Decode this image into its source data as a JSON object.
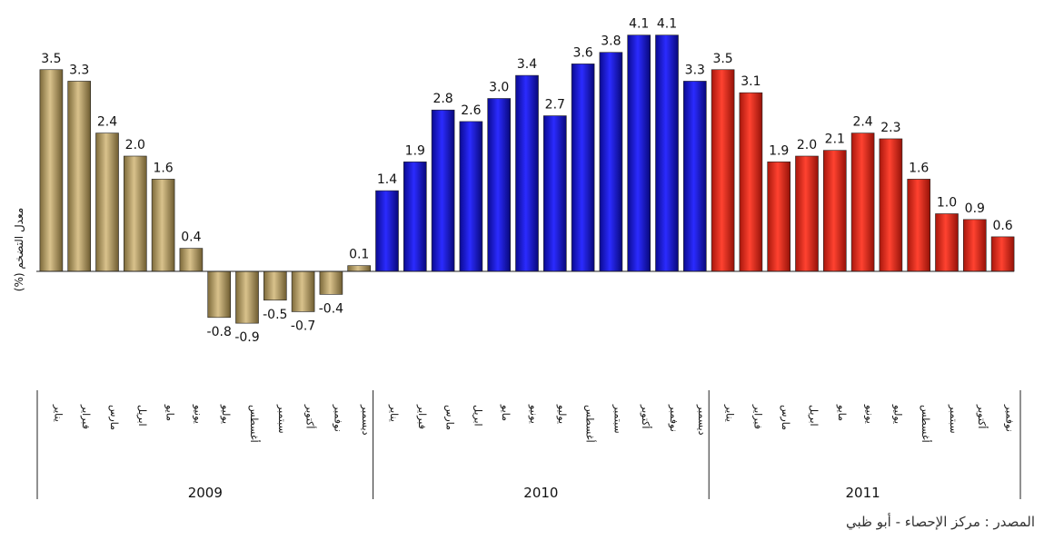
{
  "chart_data": {
    "type": "bar",
    "ylabel": "معدل التضخم (%)",
    "groups": [
      {
        "year": "2009",
        "color": "#b8a06a",
        "months": [
          "يناير",
          "فبراير",
          "مارس",
          "ابريل",
          "مايو",
          "يونيو",
          "يوليو",
          "أغسطس",
          "سبتمبر",
          "أكتوبر",
          "نوفمبر",
          "ديسمبر"
        ],
        "values": [
          3.5,
          3.3,
          2.4,
          2.0,
          1.6,
          0.4,
          -0.8,
          -0.9,
          -0.5,
          -0.7,
          -0.4,
          0.1
        ],
        "labels": [
          "3.5",
          "3.3",
          "2.4",
          "2.0",
          "1.6",
          "0.4",
          "-0.8",
          "-0.9",
          "-0.5",
          "-0.7",
          "-0.4",
          "0.1"
        ]
      },
      {
        "year": "2010",
        "color": "#1414e0",
        "months": [
          "يناير",
          "فبراير",
          "مارس",
          "ابريل",
          "مايو",
          "يونيو",
          "يوليو",
          "أغسطس",
          "سبتمبر",
          "أكتوبر",
          "نوفمبر",
          "ديسمبر"
        ],
        "values": [
          1.4,
          1.9,
          2.8,
          2.6,
          3.0,
          3.4,
          2.7,
          3.6,
          3.8,
          4.1,
          4.1,
          3.3
        ],
        "labels": [
          "1.4",
          "1.9",
          "2.8",
          "2.6",
          "3.0",
          "3.4",
          "2.7",
          "3.6",
          "3.8",
          "4.1",
          "4.1",
          "3.3"
        ]
      },
      {
        "year": "2011",
        "color": "#e52a1a",
        "months": [
          "يناير",
          "فبراير",
          "مارس",
          "ابريل",
          "مايو",
          "يونيو",
          "يوليو",
          "أغسطس",
          "سبتمبر",
          "أكتوبر",
          "نوفمبر"
        ],
        "values": [
          3.5,
          3.1,
          1.9,
          2.0,
          2.1,
          2.4,
          2.3,
          1.6,
          1.0,
          0.9,
          0.6
        ],
        "labels": [
          "3.5",
          "3.1",
          "1.9",
          "2.0",
          "2.1",
          "2.4",
          "2.3",
          "1.6",
          "1.0",
          "0.9",
          "0.6"
        ]
      }
    ]
  },
  "source_text": "المصدر : مركز الإحصاء - أبو ظبي"
}
